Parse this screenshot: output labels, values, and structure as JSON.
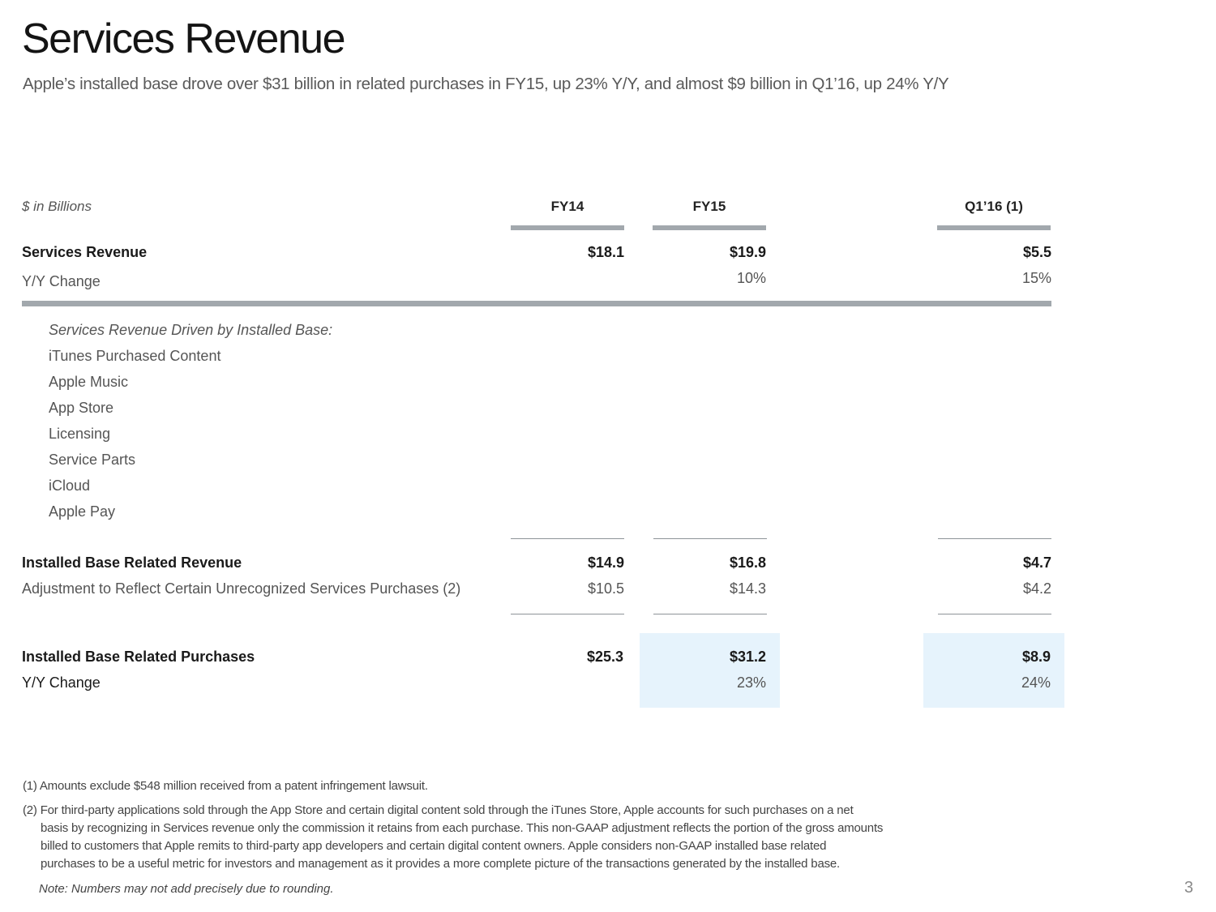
{
  "header": {
    "title": "Services Revenue",
    "subtitle": "Apple’s installed base drove over $31 billion in related purchases in FY15, up 23% Y/Y, and almost $9 billion in Q1’16, up 24% Y/Y"
  },
  "table": {
    "units_label": "$ in Billions",
    "columns": [
      "FY14",
      "FY15",
      "Q1’16 (1)"
    ],
    "services_revenue": {
      "label": "Services Revenue",
      "values": [
        "$18.1",
        "$19.9",
        "$5.5"
      ]
    },
    "services_yy": {
      "label": "Y/Y Change",
      "values": [
        "",
        "10%",
        "15%"
      ]
    },
    "driven_by": {
      "heading": "Services Revenue Driven by Installed Base:",
      "items": [
        "iTunes Purchased Content",
        "Apple Music",
        "App Store",
        "Licensing",
        "Service Parts",
        "iCloud",
        "Apple Pay"
      ]
    },
    "installed_base_revenue": {
      "label": "Installed Base Related Revenue",
      "values": [
        "$14.9",
        "$16.8",
        "$4.7"
      ]
    },
    "adjustment": {
      "label": "Adjustment to Reflect Certain Unrecognized Services Purchases (2)",
      "values": [
        "$10.5",
        "$14.3",
        "$4.2"
      ]
    },
    "installed_base_purchases": {
      "label": "Installed Base Related Purchases",
      "values": [
        "$25.3",
        "$31.2",
        "$8.9"
      ]
    },
    "purchases_yy": {
      "label": "Y/Y Change",
      "values": [
        "",
        "23%",
        "24%"
      ]
    }
  },
  "footnotes": {
    "fn1": "(1) Amounts exclude $548 million received from a patent infringement lawsuit.",
    "fn2_lines": [
      "(2) For third-party applications sold through the App Store and certain digital content sold through the iTunes Store, Apple accounts for such purchases on a net",
      "basis by recognizing in Services revenue only the commission it retains from each purchase. This non-GAAP adjustment reflects the portion of the gross amounts",
      "billed to customers that Apple remits to third-party app developers and certain digital content owners. Apple considers non-GAAP installed base related",
      "purchases to be a useful metric for investors and management as it provides a more complete picture of the transactions generated by the installed base."
    ],
    "note": "Note: Numbers may not add precisely due to rounding."
  },
  "page_number": "3",
  "colors": {
    "highlight": "#e6f3fc",
    "rule": "#a2a8ad"
  }
}
